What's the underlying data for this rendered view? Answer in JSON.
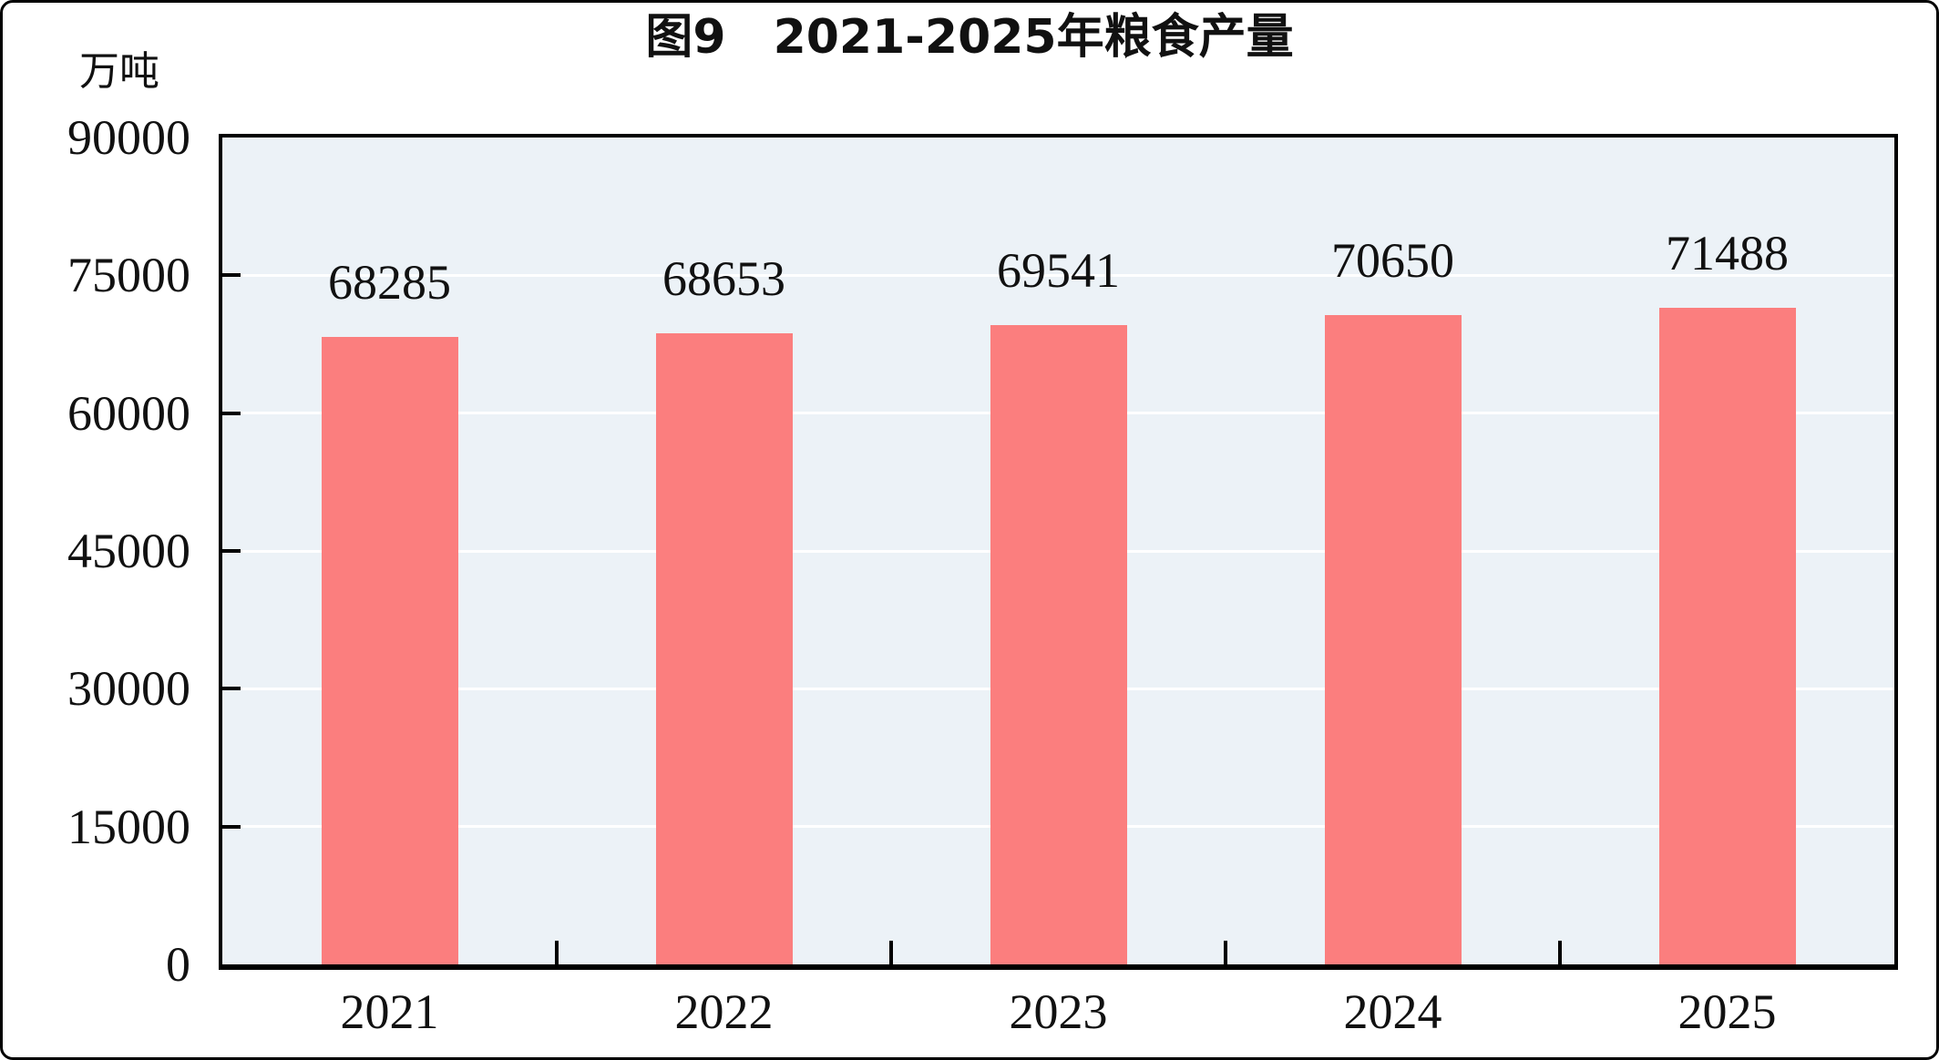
{
  "chart_data": {
    "type": "bar",
    "title": "图9　2021-2025年粮食产量",
    "unit_label": "万吨",
    "categories": [
      "2021",
      "2022",
      "2023",
      "2024",
      "2025"
    ],
    "values": [
      68285,
      68653,
      69541,
      70650,
      71488
    ],
    "value_labels": [
      "68285",
      "68653",
      "69541",
      "70650",
      "71488"
    ],
    "ylim": [
      0,
      90000
    ],
    "ytick_interval": 15000,
    "yticks": [
      0,
      15000,
      30000,
      45000,
      60000,
      75000,
      90000
    ],
    "ytick_labels": [
      "0",
      "15000",
      "30000",
      "45000",
      "60000",
      "75000",
      "90000"
    ],
    "xlabel": "",
    "ylabel": "万吨",
    "grid": "horizontal-major-white",
    "legend": "none",
    "bar_color": "#FB7E7E",
    "plot_background": "#ECF2F7",
    "gridline_color": "#FFFFFF",
    "axis_color": "#000000",
    "text_color": "#111111",
    "page_background": "#FFFFFF"
  }
}
